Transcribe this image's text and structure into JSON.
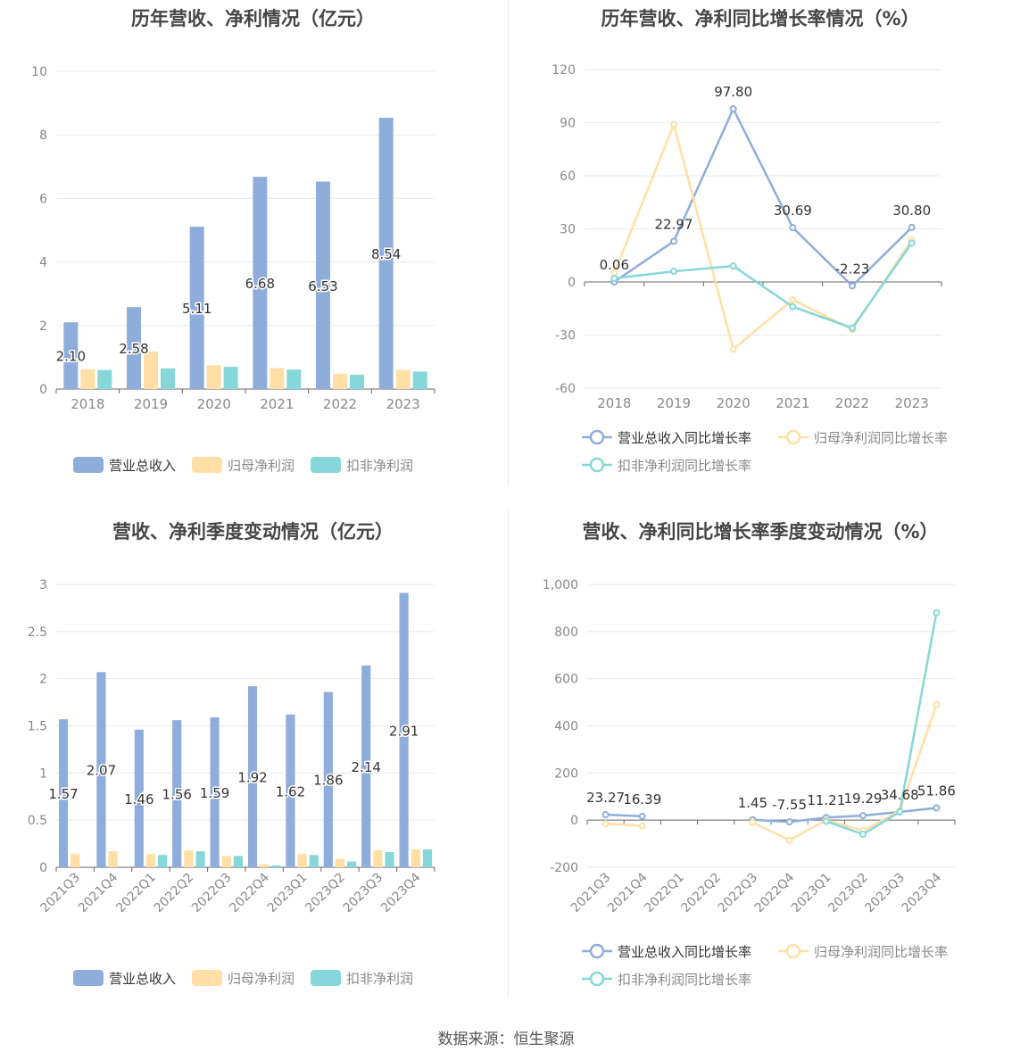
{
  "footer": {
    "source": "数据来源：恒生聚源"
  },
  "colors": {
    "revenue": "#8eaddb",
    "net_profit": "#ffdfa5",
    "deducted_profit": "#86d7d9",
    "grid": "#e6e9ef",
    "axis_text": "#888888"
  },
  "chart_data": [
    {
      "id": "annual-bar",
      "type": "bar",
      "title": "历年营收、净利情况（亿元）",
      "categories": [
        "2018",
        "2019",
        "2020",
        "2021",
        "2022",
        "2023"
      ],
      "ylim": [
        0,
        10
      ],
      "yticks": [
        "0",
        "2",
        "4",
        "6",
        "8",
        "10"
      ],
      "series": [
        {
          "name": "营业总收入",
          "values": [
            2.1,
            2.58,
            5.11,
            6.68,
            6.53,
            8.54
          ],
          "labels": [
            "2.10",
            "2.58",
            "5.11",
            "6.68",
            "6.53",
            "8.54"
          ]
        },
        {
          "name": "归母净利润",
          "values": [
            0.62,
            1.18,
            0.75,
            0.66,
            0.48,
            0.6
          ]
        },
        {
          "name": "扣非净利润",
          "values": [
            0.6,
            0.65,
            0.7,
            0.61,
            0.45,
            0.55
          ]
        }
      ],
      "grid": true,
      "legend": "bottom"
    },
    {
      "id": "annual-line",
      "type": "line",
      "title": "历年营收、净利同比增长率情况（%）",
      "categories": [
        "2018",
        "2019",
        "2020",
        "2021",
        "2022",
        "2023"
      ],
      "ylim": [
        -60,
        120
      ],
      "yticks": [
        "-60",
        "-30",
        "0",
        "30",
        "60",
        "90",
        "120"
      ],
      "series": [
        {
          "name": "营业总收入同比增长率",
          "values": [
            0.06,
            22.97,
            97.8,
            30.69,
            -2.23,
            30.8
          ],
          "labels": [
            "0.06",
            "22.97",
            "97.80",
            "30.69",
            "-2.23",
            "30.80"
          ]
        },
        {
          "name": "归母净利润同比增长率",
          "values": [
            5,
            89,
            -38,
            -10,
            -27,
            24
          ]
        },
        {
          "name": "扣非净利润同比增长率",
          "values": [
            2,
            6,
            9,
            -14,
            -26,
            22
          ]
        }
      ],
      "grid": true,
      "legend": "bottom"
    },
    {
      "id": "quarter-bar",
      "type": "bar",
      "title": "营收、净利季度变动情况（亿元）",
      "categories": [
        "2021Q3",
        "2021Q4",
        "2022Q1",
        "2022Q2",
        "2022Q3",
        "2022Q4",
        "2023Q1",
        "2023Q2",
        "2023Q3",
        "2023Q4"
      ],
      "ylim": [
        0,
        3
      ],
      "yticks": [
        "0",
        "0.5",
        "1",
        "1.5",
        "2",
        "2.5",
        "3"
      ],
      "series": [
        {
          "name": "营业总收入",
          "values": [
            1.57,
            2.07,
            1.46,
            1.56,
            1.59,
            1.92,
            1.62,
            1.86,
            2.14,
            2.91
          ],
          "labels": [
            "1.57",
            "2.07",
            "1.46",
            "1.56",
            "1.59",
            "1.92",
            "1.62",
            "1.86",
            "2.14",
            "2.91"
          ]
        },
        {
          "name": "归母净利润",
          "values": [
            0.14,
            0.17,
            0.14,
            0.18,
            0.12,
            0.03,
            0.14,
            0.09,
            0.18,
            0.19
          ]
        },
        {
          "name": "扣非净利润",
          "values": [
            0,
            0,
            0.13,
            0.17,
            0.12,
            0.02,
            0.13,
            0.06,
            0.16,
            0.19
          ]
        }
      ],
      "grid": true,
      "legend": "bottom"
    },
    {
      "id": "quarter-line",
      "type": "line",
      "title": "营收、净利同比增长率季度变动情况（%）",
      "categories": [
        "2021Q3",
        "2021Q4",
        "2022Q1",
        "2022Q2",
        "2022Q3",
        "2022Q4",
        "2023Q1",
        "2023Q2",
        "2023Q3",
        "2023Q4"
      ],
      "ylim": [
        -200,
        1000
      ],
      "yticks": [
        "-200",
        "0",
        "200",
        "400",
        "600",
        "800",
        "1,000"
      ],
      "series": [
        {
          "name": "营业总收入同比增长率",
          "values": [
            23.27,
            16.39,
            null,
            null,
            1.45,
            -7.55,
            11.21,
            19.29,
            34.68,
            51.86
          ],
          "labels": [
            "23.27",
            "16.39",
            "",
            "",
            "1.45",
            "-7.55",
            "11.21",
            "19.29",
            "34.68",
            "51.86"
          ]
        },
        {
          "name": "归母净利润同比增长率",
          "values": [
            -15,
            -25,
            null,
            null,
            -10,
            -85,
            0,
            -45,
            40,
            490
          ]
        },
        {
          "name": "扣非净利润同比增长率",
          "values": [
            null,
            null,
            null,
            null,
            null,
            null,
            -5,
            -60,
            35,
            880
          ]
        }
      ],
      "grid": true,
      "legend": "bottom"
    }
  ]
}
